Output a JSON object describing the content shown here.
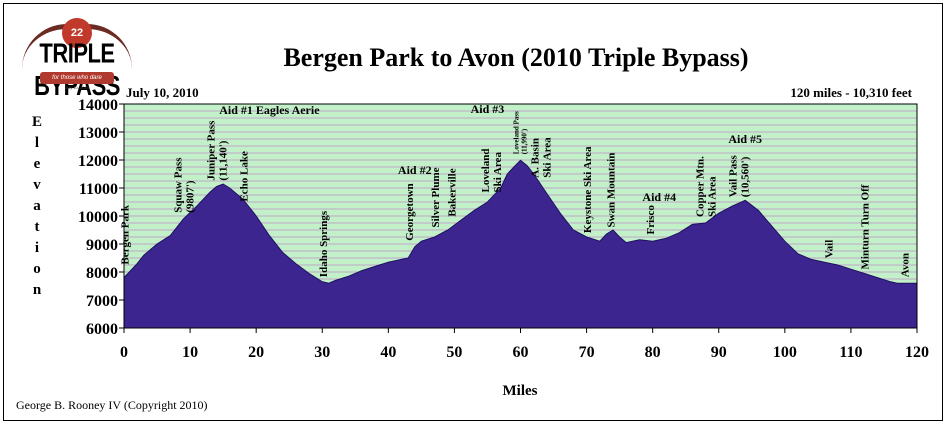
{
  "logo": {
    "badge": "22",
    "text": "TRIPLE BYPASS",
    "tagline": "for those who dare",
    "date": "July 10, 2010"
  },
  "chart_data": {
    "type": "area",
    "title": "Bergen Park to Avon (2010 Triple Bypass)",
    "subtitle_left": "July 10, 2010",
    "subtitle_right": "120 miles - 10,310 feet",
    "xlabel": "Miles",
    "ylabel": "Elevation",
    "credit": "George B. Rooney IV (Copyright 2010)",
    "xlim": [
      0,
      120
    ],
    "ylim": [
      6000,
      14000
    ],
    "xticks": [
      0,
      10,
      20,
      30,
      40,
      50,
      60,
      70,
      80,
      90,
      100,
      110,
      120
    ],
    "yticks": [
      6000,
      7000,
      8000,
      9000,
      10000,
      11000,
      12000,
      13000,
      14000
    ],
    "grid": true,
    "colors": {
      "fill": "#3d2590",
      "background": "#c2f0c8",
      "grid": "#c0a8c8"
    },
    "x": [
      0,
      1,
      2,
      3,
      5,
      7,
      9,
      11,
      13,
      14,
      15,
      16,
      18,
      20,
      22,
      24,
      26,
      28,
      30,
      31,
      32,
      34,
      36,
      38,
      40,
      42,
      43,
      44,
      45,
      47,
      49,
      51,
      53,
      55,
      57,
      58,
      59,
      60,
      61,
      62,
      64,
      66,
      68,
      70,
      72,
      73,
      74,
      75,
      76,
      78,
      80,
      82,
      84,
      86,
      88,
      90,
      92,
      94,
      96,
      98,
      100,
      102,
      104,
      106,
      108,
      110,
      112,
      114,
      116,
      117,
      120
    ],
    "y": [
      7800,
      8050,
      8300,
      8600,
      9000,
      9300,
      9900,
      10350,
      10850,
      11050,
      11140,
      11000,
      10600,
      10000,
      9300,
      8700,
      8300,
      7950,
      7650,
      7600,
      7700,
      7850,
      8050,
      8200,
      8350,
      8450,
      8500,
      8900,
      9100,
      9250,
      9500,
      9850,
      10200,
      10500,
      11000,
      11500,
      11750,
      11990,
      11800,
      11500,
      10800,
      10100,
      9500,
      9250,
      9100,
      9350,
      9500,
      9250,
      9050,
      9150,
      9100,
      9200,
      9400,
      9700,
      9750,
      10100,
      10350,
      10560,
      10200,
      9650,
      9100,
      8650,
      8450,
      8350,
      8250,
      8100,
      7950,
      7800,
      7650,
      7600,
      7600
    ],
    "annotations": [
      {
        "text": "Bergen Park",
        "x": 1
      },
      {
        "text": "Squaw Pass",
        "x": 9,
        "sub": "(9807')"
      },
      {
        "text": "Juniper Pass",
        "x": 14,
        "sub": "(11,140')"
      },
      {
        "text": "Echo Lake",
        "x": 19
      },
      {
        "text": "Aid #1 Eagles Aerie",
        "x": 22,
        "horizontal": true
      },
      {
        "text": "Idaho Springs",
        "x": 31
      },
      {
        "text": "Aid #2",
        "x": 44,
        "horizontal": true
      },
      {
        "text": "Georgetown",
        "x": 44
      },
      {
        "text": "Silver Plume",
        "x": 48
      },
      {
        "text": "Bakerville",
        "x": 50.5
      },
      {
        "text": "Aid #3",
        "x": 55,
        "horizontal": true
      },
      {
        "text": "Loveland",
        "x": 55.5,
        "sub": "Ski Area"
      },
      {
        "text": "Loveland Pass",
        "x": 60,
        "sub": "(11,990')",
        "small": true
      },
      {
        "text": "A. Basin",
        "x": 63,
        "sub": "Ski Area"
      },
      {
        "text": "Keystone Ski Area",
        "x": 71
      },
      {
        "text": "Swan Mountain",
        "x": 74.5
      },
      {
        "text": "Aid #4",
        "x": 81,
        "horizontal": true
      },
      {
        "text": "Frisco",
        "x": 80.5
      },
      {
        "text": "Copper Mtn.",
        "x": 88,
        "sub": "Ski Area"
      },
      {
        "text": "Vail Pass",
        "x": 93,
        "sub": "(10,560')"
      },
      {
        "text": "Aid #5",
        "x": 94,
        "horizontal": true
      },
      {
        "text": "Vail",
        "x": 107.5
      },
      {
        "text": "Minturn Turn Off",
        "x": 113
      },
      {
        "text": "Avon",
        "x": 119
      }
    ]
  }
}
